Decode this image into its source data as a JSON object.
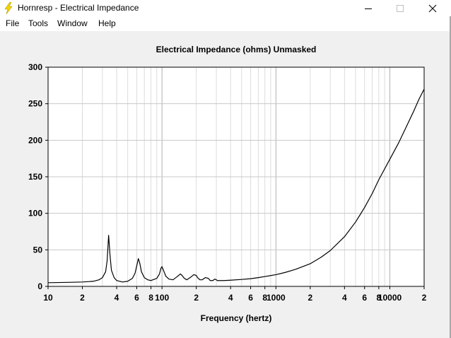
{
  "window": {
    "title": "Hornresp - Electrical Impedance",
    "minimize_icon": "minimize-icon",
    "maximize_icon": "maximize-icon",
    "close_icon": "close-icon",
    "app_icon": "lightning-icon"
  },
  "menu": {
    "items": [
      "File",
      "Tools",
      "Window",
      "Help"
    ]
  },
  "colors": {
    "curve": "#000000",
    "grid": "#c8c8c8",
    "plot_bg": "#ffffff",
    "window_bg": "#f0f0f0",
    "icon": "#f2d600"
  },
  "chart_data": {
    "type": "line",
    "title": "Electrical Impedance (ohms)   Unmasked",
    "xlabel": "Frequency (hertz)",
    "ylabel": "",
    "x_scale": "log",
    "xlim": [
      10,
      20000
    ],
    "ylim": [
      0,
      300
    ],
    "grid": true,
    "y_ticks": [
      0,
      50,
      100,
      150,
      200,
      250,
      300
    ],
    "y_tick_labels": [
      "0",
      "50",
      "100",
      "150",
      "200",
      "250",
      "300"
    ],
    "x_ticks": [
      10,
      20,
      40,
      60,
      80,
      100,
      200,
      400,
      600,
      800,
      1000,
      2000,
      4000,
      6000,
      8000,
      10000,
      20000
    ],
    "x_tick_labels": [
      "10",
      "2",
      "4",
      "6",
      "8",
      "100",
      "2",
      "4",
      "6",
      "8",
      "1000",
      "2",
      "4",
      "6",
      "8",
      "10000",
      "2"
    ],
    "series": [
      {
        "x": [
          10,
          15,
          20,
          25,
          28,
          30,
          32,
          33,
          34,
          35,
          36,
          38,
          40,
          45,
          50,
          55,
          58,
          60,
          62,
          64,
          66,
          70,
          75,
          80,
          90,
          95,
          98,
          100,
          103,
          108,
          115,
          125,
          135,
          145,
          150,
          157,
          165,
          180,
          190,
          200,
          205,
          215,
          225,
          240,
          255,
          265,
          280,
          290,
          300,
          305,
          315,
          330,
          350,
          400,
          500,
          600,
          700,
          800,
          1000,
          1200,
          1500,
          2000,
          2500,
          3000,
          4000,
          5000,
          6000,
          7000,
          8000,
          10000,
          12000,
          14000,
          16000,
          18000,
          20000
        ],
        "y": [
          5,
          5.5,
          6,
          7,
          9,
          12,
          20,
          35,
          70,
          42,
          22,
          12,
          8,
          6,
          7,
          11,
          18,
          28,
          38,
          31,
          20,
          12,
          9,
          8,
          11,
          17,
          25,
          27,
          22,
          14,
          10,
          9,
          13,
          17,
          15,
          11,
          9,
          13,
          16,
          15,
          12,
          9,
          9,
          12,
          11,
          8,
          8,
          10,
          9,
          8,
          8,
          8,
          8,
          8.5,
          9.5,
          10.5,
          12,
          13.5,
          16,
          19,
          23.5,
          31,
          40,
          49,
          68,
          88,
          108,
          127,
          146,
          174,
          197,
          219,
          238,
          256,
          270
        ]
      }
    ]
  }
}
